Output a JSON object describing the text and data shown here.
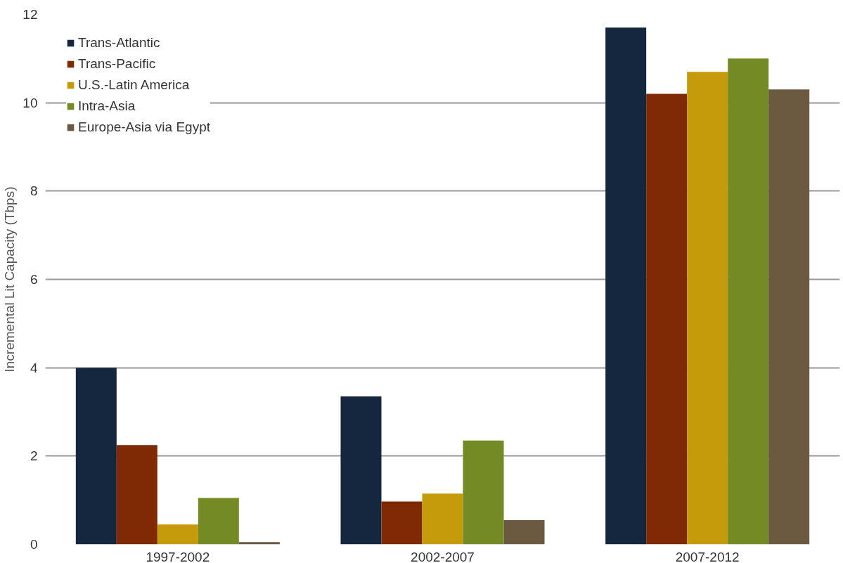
{
  "chart_data": {
    "type": "bar",
    "ylabel": "Incremental Lit Capacity (Tbps)",
    "categories": [
      "1997-2002",
      "2002-2007",
      "2007-2012"
    ],
    "series": [
      {
        "name": "Trans-Atlantic",
        "color": "#14273f",
        "values": [
          4.0,
          3.35,
          11.7
        ]
      },
      {
        "name": "Trans-Pacific",
        "color": "#7f2a05",
        "values": [
          2.25,
          0.97,
          10.2
        ]
      },
      {
        "name": "U.S.-Latin America",
        "color": "#c59a0b",
        "values": [
          0.45,
          1.15,
          10.7
        ]
      },
      {
        "name": "Intra-Asia",
        "color": "#738a25",
        "values": [
          1.05,
          2.35,
          11.0
        ]
      },
      {
        "name": "Europe-Asia via Egypt",
        "color": "#6b5a3f",
        "values": [
          0.05,
          0.55,
          10.3
        ]
      }
    ],
    "ylim": [
      0,
      12
    ],
    "yticks": [
      0,
      2,
      4,
      6,
      8,
      10,
      12
    ],
    "grid": "y",
    "legend": "top left"
  }
}
